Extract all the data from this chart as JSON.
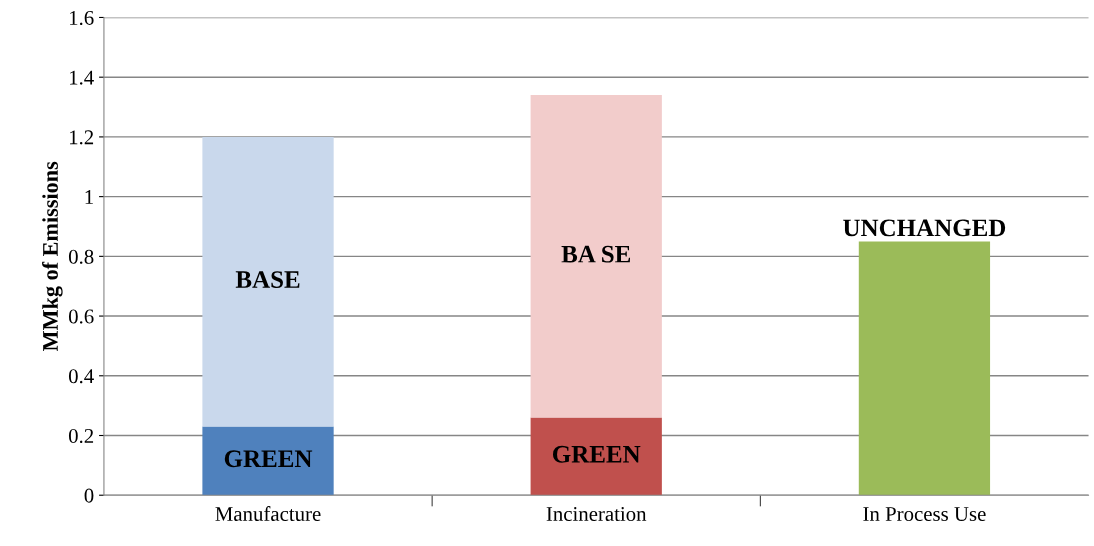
{
  "chart_data": {
    "type": "bar",
    "stacked": true,
    "ylabel": "MMkg of Emissions",
    "categories": [
      "Manufacture",
      "Incineration",
      "In Process Use"
    ],
    "series": [
      {
        "colors": [
          "#4f81bd",
          "#c0504d",
          "#9bbb59"
        ],
        "values": [
          0.23,
          0.26,
          0.85
        ],
        "value_labels": [
          "GREEN",
          "GREEN",
          "UNCHANGED"
        ]
      },
      {
        "colors": [
          "#c9d8ec",
          "#f2cccb",
          "#dbe8c4"
        ],
        "values": [
          0.97,
          1.08,
          null
        ],
        "value_labels": [
          "BASE",
          "BA SE",
          null
        ]
      }
    ],
    "ylim": [
      0,
      1.6
    ],
    "yticks": [
      0,
      0.2,
      0.4,
      0.6,
      0.8,
      1,
      1.2,
      1.4,
      1.6
    ],
    "grid": "y"
  }
}
